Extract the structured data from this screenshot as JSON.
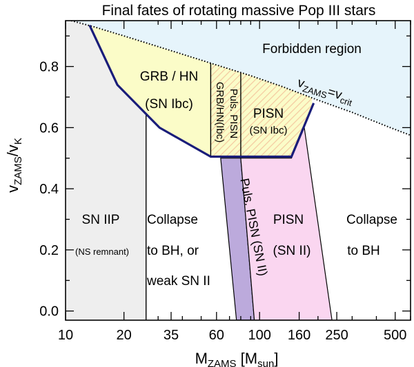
{
  "chart_data": {
    "type": "area",
    "title": "Final fates of rotating massive Pop III stars",
    "xlabel": {
      "main": "M",
      "sub": "ZAMS",
      "rest": " [M",
      "sub2": "sun",
      "end": "]"
    },
    "ylabel": {
      "v": "v",
      "sub1": "ZAMS",
      "slash": "/v",
      "sub2": "K"
    },
    "x_scale": "log",
    "xlim": [
      10,
      600
    ],
    "ylim": [
      -0.03,
      0.95
    ],
    "x_ticks": [
      10,
      20,
      35,
      60,
      100,
      160,
      250,
      500
    ],
    "y_ticks": [
      0.0,
      0.2,
      0.4,
      0.6,
      0.8
    ],
    "y_tick_labels": [
      "0.0",
      "0.2",
      "0.4",
      "0.6",
      "0.8"
    ],
    "critical_curve": {
      "label": {
        "v": "v",
        "sub1": "ZAMS",
        "eq": "=v",
        "sub2": "crit"
      },
      "points": [
        [
          10,
          0.955
        ],
        [
          14,
          0.93
        ],
        [
          20,
          0.9
        ],
        [
          30,
          0.865
        ],
        [
          45,
          0.83
        ],
        [
          60,
          0.805
        ],
        [
          90,
          0.77
        ],
        [
          130,
          0.735
        ],
        [
          200,
          0.69
        ],
        [
          300,
          0.65
        ],
        [
          450,
          0.605
        ],
        [
          600,
          0.575
        ]
      ]
    },
    "boundary_line": {
      "points": [
        [
          13.3,
          0.935
        ],
        [
          18.5,
          0.74
        ],
        [
          30.5,
          0.6
        ],
        [
          56,
          0.505
        ],
        [
          146,
          0.505
        ],
        [
          190,
          0.68
        ]
      ]
    },
    "regions": [
      {
        "name": "SN IIP",
        "sublabel": "(NS remnant)",
        "color": "#eeeeee",
        "polygon": [
          [
            10,
            -0.03
          ],
          [
            26,
            -0.03
          ],
          [
            26,
            0.665
          ],
          [
            18.5,
            0.74
          ],
          [
            13.3,
            0.935
          ],
          [
            10,
            0.955
          ]
        ]
      },
      {
        "name": "Collapse to BH, or weak SN II",
        "lines": [
          "Collapse",
          "to BH, or",
          "weak SN II"
        ]
      },
      {
        "name": "GRB / HN",
        "lines": [
          "GRB / HN",
          "(SN Ibc)"
        ],
        "color": "#fbfcc8"
      },
      {
        "name": "GRB/HN(Ibc)",
        "hatched": true
      },
      {
        "name": "Puls. PISN",
        "hatched": true
      },
      {
        "name": "PISN",
        "lines": [
          "PISN",
          "(SN Ibc)"
        ],
        "hatched": true
      },
      {
        "name": "Puls. PISN (SN II)",
        "color": "#bcaadc",
        "polygon": [
          [
            63,
            0.5
          ],
          [
            80,
            0.5
          ],
          [
            94,
            -0.03
          ],
          [
            76,
            -0.03
          ]
        ]
      },
      {
        "name": "PISN",
        "lines": [
          "PISN",
          "(SN II)"
        ],
        "color": "#fad6f0",
        "polygon": [
          [
            80,
            0.5
          ],
          [
            146,
            0.5
          ],
          [
            170,
            0.6
          ],
          [
            236,
            -0.03
          ],
          [
            94,
            -0.03
          ]
        ]
      },
      {
        "name": "Collapse to BH",
        "lines": [
          "Collapse",
          "to BH"
        ]
      },
      {
        "name": "Forbidden region",
        "color": "#e6f4fb"
      }
    ]
  },
  "labels": {
    "forbidden": "Forbidden region",
    "grb_hn": "GRB / HN",
    "grb_hn_sub": "(SN Ibc)",
    "grbhn_ibc": "GRB/HN(Ibc)",
    "puls_pisn_upper": "Puls. PISN",
    "pisn_upper": "PISN",
    "pisn_upper_sub": "(SN Ibc)",
    "sn_iip": "SN IIP",
    "ns_remnant": "(NS remnant)",
    "collapse1": "Collapse",
    "collapse2": "to BH, or",
    "collapse3": "weak SN II",
    "puls_pisn_lower": "Puls. PISN (SN II)",
    "pisn_lower": "PISN",
    "pisn_lower_sub": "(SN II)",
    "collapse_bh1": "Collapse",
    "collapse_bh2": "to BH"
  }
}
